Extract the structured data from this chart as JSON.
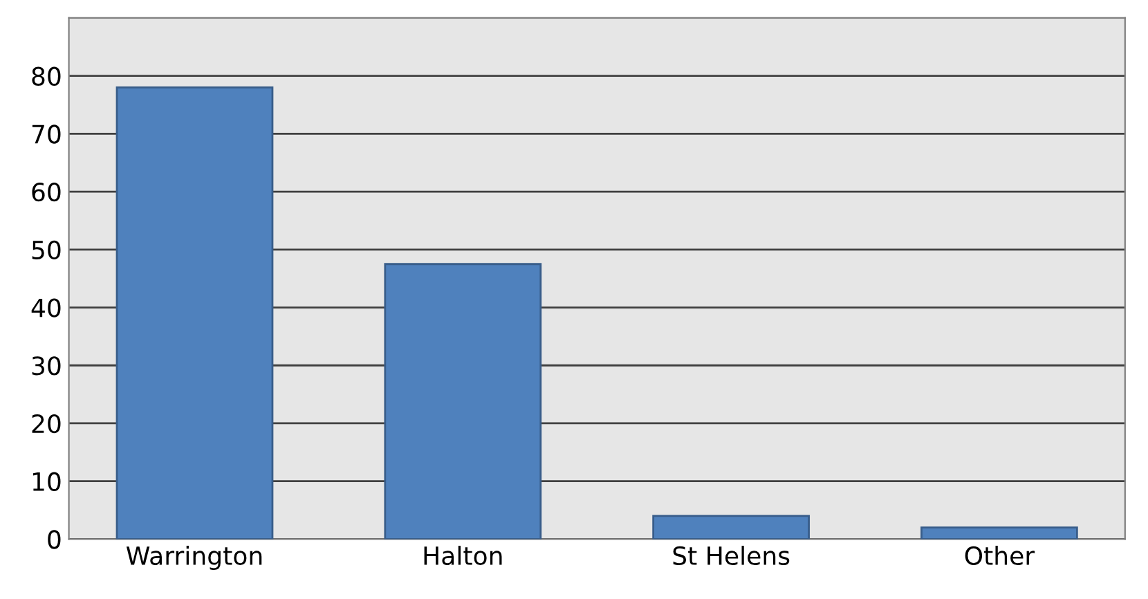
{
  "chart_data": {
    "type": "bar",
    "categories": [
      "Warrington",
      "Halton",
      "St Helens",
      "Other"
    ],
    "values": [
      78,
      47.5,
      4,
      2
    ],
    "color": "#4f81bd",
    "ylim": [
      0,
      90
    ],
    "yticks": [
      0,
      10,
      20,
      30,
      40,
      50,
      60,
      70,
      80
    ],
    "grid": "y"
  }
}
